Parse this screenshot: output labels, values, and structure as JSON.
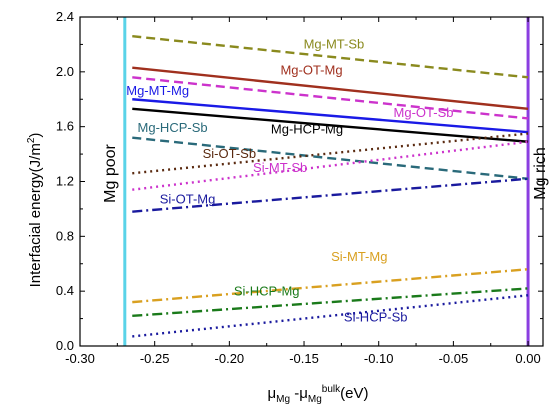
{
  "chart_data": {
    "type": "line",
    "xlabel": "μ_Mg - μ_Mg^bulk (eV)",
    "ylabel": "Interfacial energy(J/m2)",
    "xlim": [
      -0.3,
      0.01
    ],
    "ylim": [
      0.0,
      2.4
    ],
    "x_ticks": [
      "-0.30",
      "-0.25",
      "-0.20",
      "-0.15",
      "-0.10",
      "-0.05",
      "0.00"
    ],
    "y_ticks": [
      "0.0",
      "0.4",
      "0.8",
      "1.2",
      "1.6",
      "2.0",
      "2.4"
    ],
    "vertical_lines": [
      {
        "x": -0.27,
        "label": "Mg poor",
        "color": "#5ad3e8"
      },
      {
        "x": 0.0,
        "label": "Mg rich",
        "color": "#8a3ee0"
      }
    ],
    "series": [
      {
        "name": "Mg-MT-Sb",
        "x": [
          -0.265,
          0.0
        ],
        "y": [
          2.26,
          1.96
        ],
        "color": "#8a8a1e",
        "dash": "dash",
        "label_at": [
          -0.13,
          2.17
        ]
      },
      {
        "name": "Mg-OT-Mg",
        "x": [
          -0.265,
          0.0
        ],
        "y": [
          2.03,
          1.73
        ],
        "color": "#a0301e",
        "dash": "solid",
        "label_at": [
          -0.145,
          1.98
        ]
      },
      {
        "name": "Mg-OT-Sb",
        "x": [
          -0.265,
          0.0
        ],
        "y": [
          1.96,
          1.66
        ],
        "color": "#cc33cc",
        "dash": "dash",
        "label_at": [
          -0.07,
          1.67
        ]
      },
      {
        "name": "Mg-MT-Mg",
        "x": [
          -0.265,
          0.0
        ],
        "y": [
          1.8,
          1.56
        ],
        "color": "#1a1ae6",
        "dash": "solid",
        "label_at": [
          -0.248,
          1.83
        ]
      },
      {
        "name": "Mg-HCP-Mg",
        "x": [
          -0.265,
          0.0
        ],
        "y": [
          1.73,
          1.49
        ],
        "color": "#000000",
        "dash": "solid",
        "label_at": [
          -0.148,
          1.55
        ]
      },
      {
        "name": "Mg-HCP-Sb",
        "x": [
          -0.265,
          0.0
        ],
        "y": [
          1.52,
          1.22
        ],
        "color": "#2a6a7a",
        "dash": "dash",
        "label_at": [
          -0.238,
          1.56
        ]
      },
      {
        "name": "Si-OT-Sb",
        "x": [
          -0.265,
          0.0
        ],
        "y": [
          1.26,
          1.55
        ],
        "color": "#5a2a10",
        "dash": "dot",
        "label_at": [
          -0.2,
          1.37
        ]
      },
      {
        "name": "Si-MT-Sb",
        "x": [
          -0.265,
          0.0
        ],
        "y": [
          1.14,
          1.49
        ],
        "color": "#cc33cc",
        "dash": "dot",
        "label_at": [
          -0.166,
          1.27
        ]
      },
      {
        "name": "Si-OT-Mg",
        "x": [
          -0.265,
          0.0
        ],
        "y": [
          0.98,
          1.22
        ],
        "color": "#1a1a9e",
        "dash": "dashdot",
        "label_at": [
          -0.228,
          1.04
        ]
      },
      {
        "name": "Si-MT-Mg",
        "x": [
          -0.265,
          0.0
        ],
        "y": [
          0.32,
          0.56
        ],
        "color": "#d9a020",
        "dash": "dashdot",
        "label_at": [
          -0.113,
          0.62
        ]
      },
      {
        "name": "Si-HCP-Mg",
        "x": [
          -0.265,
          0.0
        ],
        "y": [
          0.22,
          0.42
        ],
        "color": "#1a7a1a",
        "dash": "dashdot",
        "label_at": [
          -0.175,
          0.37
        ]
      },
      {
        "name": "Si-HCP-Sb",
        "x": [
          -0.265,
          0.0
        ],
        "y": [
          0.07,
          0.37
        ],
        "color": "#1a1a9e",
        "dash": "dot",
        "label_at": [
          -0.102,
          0.18
        ]
      }
    ]
  }
}
